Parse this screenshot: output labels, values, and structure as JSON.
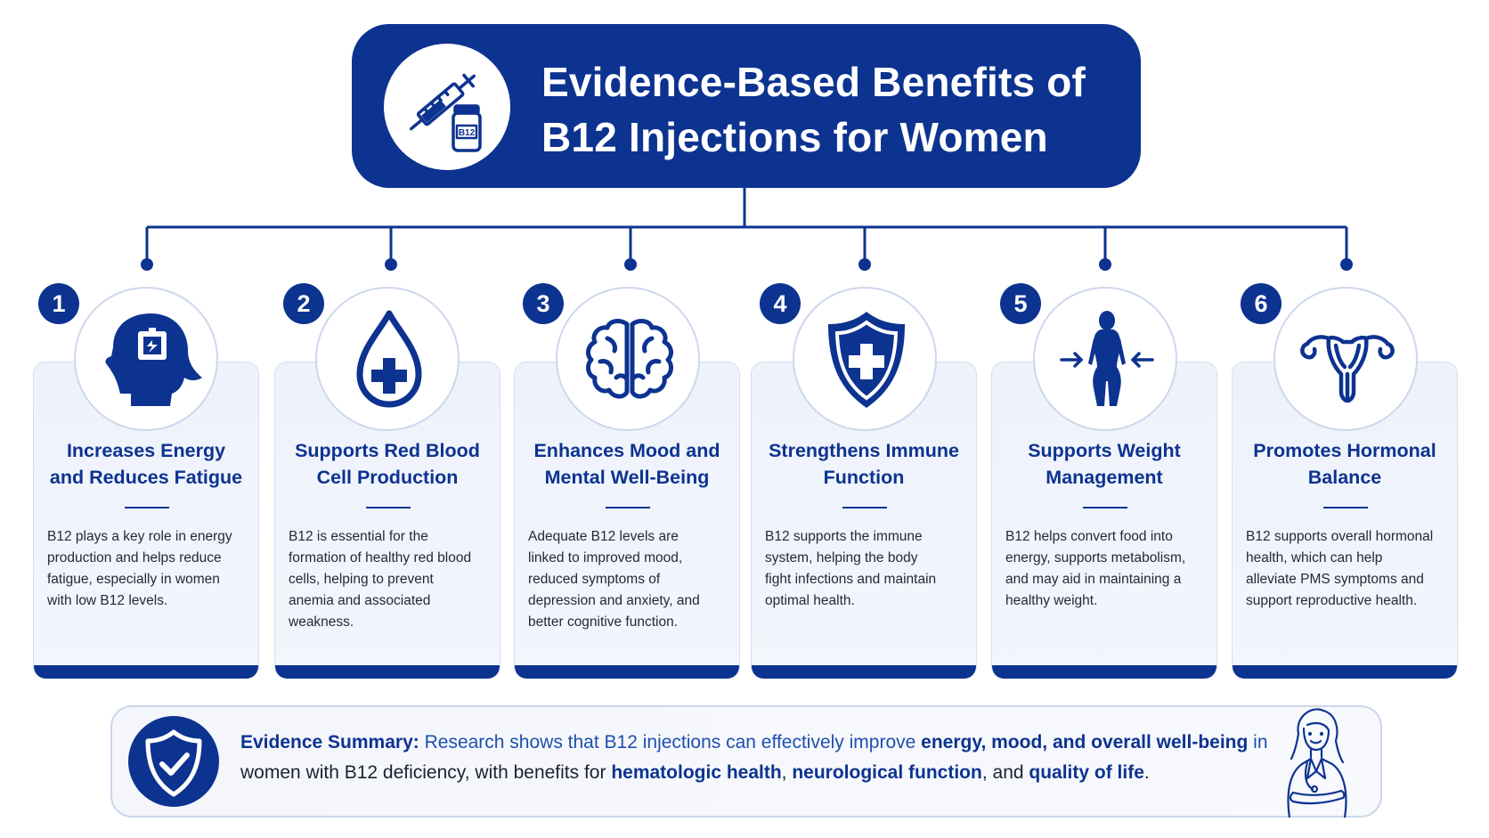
{
  "header": {
    "title_line1": "Evidence-Based Benefits of",
    "title_line2": "B12 Injections for Women",
    "vial_label": "B12",
    "icon": "syringe-and-vial-icon"
  },
  "colors": {
    "primary": "#0d3390",
    "card_bg": "#eef2fb",
    "card_border": "#d6def0",
    "text": "#222a38"
  },
  "benefits": [
    {
      "number": "1",
      "icon": "head-with-battery-icon",
      "title_lines": [
        "Increases Energy",
        "and Reduces Fatigue"
      ],
      "text_lines": [
        "B12 plays a key role in energy",
        "production and helps reduce",
        "fatigue, especially in women",
        "with low B12 levels."
      ]
    },
    {
      "number": "2",
      "icon": "blood-drop-plus-icon",
      "title_lines": [
        "Supports Red Blood",
        "Cell Production"
      ],
      "text_lines": [
        "B12 is essential for the",
        "formation of healthy red blood",
        "cells, helping to prevent",
        "anemia and associated",
        "weakness."
      ]
    },
    {
      "number": "3",
      "icon": "brain-icon",
      "title_lines": [
        "Enhances Mood and",
        "Mental Well-Being"
      ],
      "text_lines": [
        "Adequate B12 levels are",
        "linked to improved mood,",
        "reduced symptoms of",
        "depression and anxiety, and",
        "better cognitive function."
      ]
    },
    {
      "number": "4",
      "icon": "shield-plus-icon",
      "title_lines": [
        "Strengthens Immune",
        "Function"
      ],
      "text_lines": [
        "B12 supports the immune",
        "system, helping the body",
        "fight infections and maintain",
        "optimal health."
      ]
    },
    {
      "number": "5",
      "icon": "body-silhouette-arrows-icon",
      "title_lines": [
        "Supports Weight",
        "Management"
      ],
      "text_lines": [
        "B12 helps convert food into",
        "energy, supports metabolism,",
        "and may aid in maintaining a",
        "healthy weight."
      ]
    },
    {
      "number": "6",
      "icon": "uterus-icon",
      "title_lines": [
        "Promotes Hormonal",
        "Balance"
      ],
      "text_lines": [
        "B12 supports overall hormonal",
        "health, which can help",
        "alleviate PMS symptoms and",
        "support reproductive health."
      ]
    }
  ],
  "summary": {
    "label": "Evidence Summary:",
    "l1_a": " Research shows that B12 injections can effectively improve ",
    "l1_b": "energy, mood, and overall well-being",
    "l1_c": " in",
    "l2_a": "women with B12 deficiency, with benefits for ",
    "l2_b": "hematologic health",
    "l2_c": ", ",
    "l2_d": "neurological function",
    "l2_e": ", and ",
    "l2_f": "quality of life",
    "l2_g": ".",
    "icon": "shield-check-icon",
    "figure": "female-doctor-illustration"
  }
}
